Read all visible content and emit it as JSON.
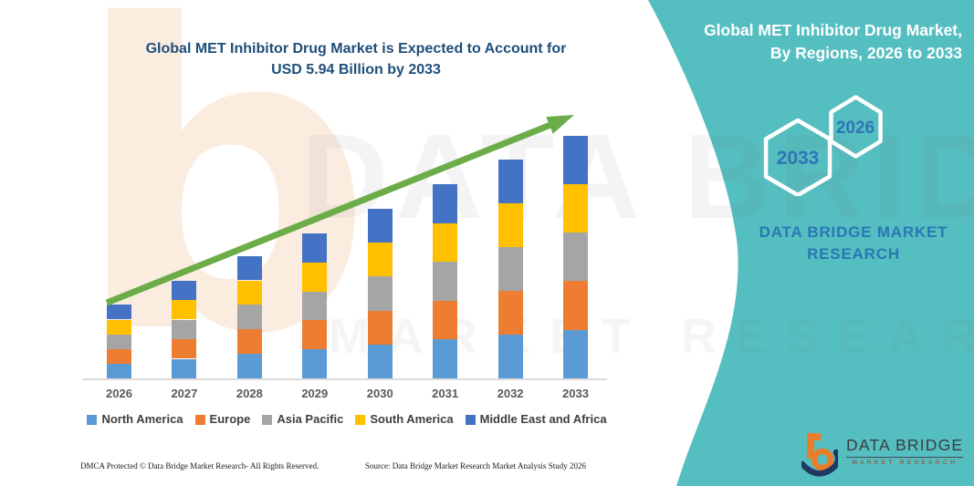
{
  "header": {
    "title_line1": "Global MET Inhibitor Drug Market is Expected to Account for",
    "title_line2": "USD 5.94 Billion by 2033"
  },
  "right_panel": {
    "title_line1": "Global MET Inhibitor Drug Market,",
    "title_line2": "By Regions, 2026 to 2033",
    "hexagon_back_year": "2033",
    "hexagon_front_year": "2026",
    "brand_line1": "DATA BRIDGE MARKET",
    "brand_line2": "RESEARCH",
    "panel_color": "#55BEC0",
    "hexagon_text_color": "#2E75B6"
  },
  "watermark": {
    "letter": "b",
    "big_text": "DATA BRIDGE",
    "row_text": "MARKET RESEARCH"
  },
  "footer": {
    "left": "DMCA Protected © Data Bridge Market Research-  All Rights Reserved.",
    "right": "Source: Data Bridge Market Research  Market Analysis Study 2026"
  },
  "logo": {
    "name": "DATA BRIDGE",
    "tagline": "MARKET RESEARCH"
  },
  "chart_data": {
    "type": "bar",
    "stacked": true,
    "title": "Global MET Inhibitor Drug Market is Expected to Account for USD 5.94 Billion by 2033",
    "unit": "USD Billion",
    "categories": [
      "2026",
      "2027",
      "2028",
      "2029",
      "2030",
      "2031",
      "2032",
      "2033"
    ],
    "series": [
      {
        "name": "North America",
        "color": "#5B9BD5",
        "values": [
          0.36,
          0.48,
          0.6,
          0.71,
          0.83,
          0.95,
          1.07,
          1.19
        ]
      },
      {
        "name": "Europe",
        "color": "#ED7D31",
        "values": [
          0.36,
          0.48,
          0.6,
          0.71,
          0.83,
          0.95,
          1.07,
          1.19
        ]
      },
      {
        "name": "Asia Pacific",
        "color": "#A5A5A5",
        "values": [
          0.36,
          0.48,
          0.6,
          0.71,
          0.83,
          0.95,
          1.07,
          1.19
        ]
      },
      {
        "name": "South America",
        "color": "#FFC000",
        "values": [
          0.36,
          0.48,
          0.6,
          0.71,
          0.83,
          0.95,
          1.07,
          1.19
        ]
      },
      {
        "name": "Middle East and Africa",
        "color": "#4472C4",
        "values": [
          0.36,
          0.48,
          0.6,
          0.71,
          0.83,
          0.95,
          1.07,
          1.19
        ]
      }
    ],
    "totals": [
      1.8,
      2.4,
      3.0,
      3.55,
      4.15,
      4.75,
      5.35,
      5.94
    ],
    "ylim": [
      0,
      5.95
    ],
    "grid": false,
    "legend_position": "bottom",
    "trend_arrow_color": "#6CAD49",
    "axis_label_color": "#595959"
  }
}
